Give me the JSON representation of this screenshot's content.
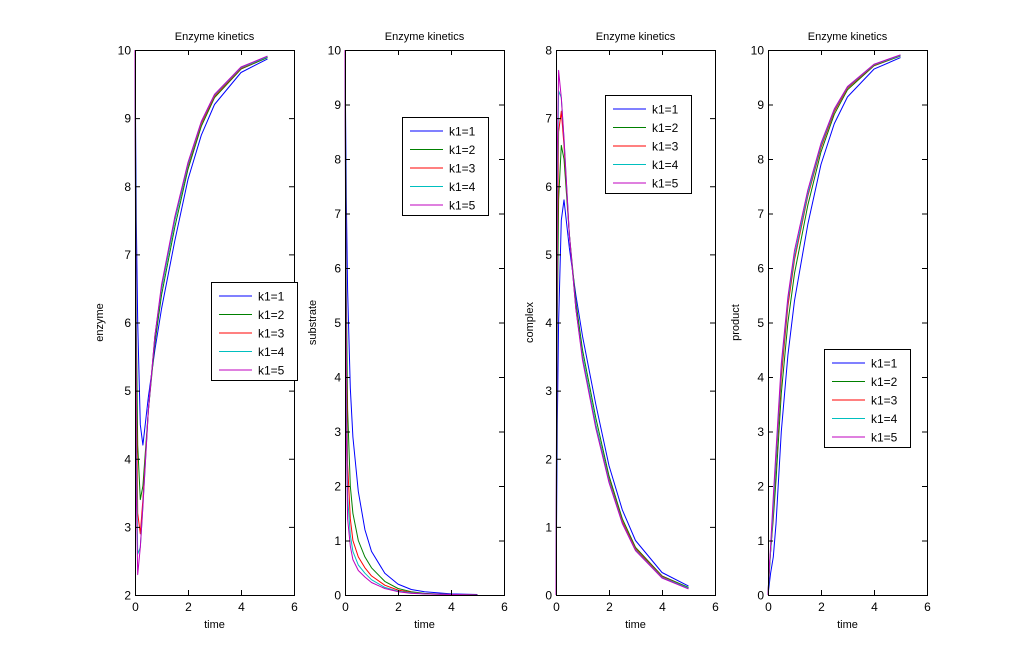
{
  "chart_data": [
    {
      "type": "line",
      "title": "Enzyme kinetics",
      "xlabel": "time",
      "ylabel": "enzyme",
      "xlim": [
        0,
        6
      ],
      "ylim": [
        2,
        10
      ],
      "xticks": [
        0,
        2,
        4,
        6
      ],
      "yticks": [
        2,
        3,
        4,
        5,
        6,
        7,
        8,
        9,
        10
      ],
      "legend_position": "middle-right",
      "x": [
        0,
        0.05,
        0.1,
        0.2,
        0.3,
        0.5,
        0.75,
        1,
        1.5,
        2,
        2.5,
        3,
        4,
        5
      ],
      "series": [
        {
          "name": "k1=1",
          "color": "#0000ff",
          "values": [
            10,
            7.5,
            6.0,
            4.5,
            4.2,
            4.9,
            5.6,
            6.2,
            7.2,
            8.1,
            8.75,
            9.2,
            9.67,
            9.87
          ]
        },
        {
          "name": "k1=2",
          "color": "#008000",
          "values": [
            10,
            6.0,
            4.2,
            3.4,
            3.6,
            4.7,
            5.7,
            6.4,
            7.4,
            8.25,
            8.88,
            9.3,
            9.72,
            9.89
          ]
        },
        {
          "name": "k1=3",
          "color": "#ff0000",
          "values": [
            10,
            5.0,
            3.2,
            2.9,
            3.4,
            4.7,
            5.8,
            6.5,
            7.5,
            8.3,
            8.92,
            9.32,
            9.73,
            9.9
          ]
        },
        {
          "name": "k1=4",
          "color": "#00bfbf",
          "values": [
            10,
            4.2,
            2.6,
            2.7,
            3.3,
            4.7,
            5.8,
            6.5,
            7.5,
            8.32,
            8.94,
            9.34,
            9.74,
            9.9
          ]
        },
        {
          "name": "k1=5",
          "color": "#bf00bf",
          "values": [
            10,
            3.5,
            2.3,
            2.7,
            3.3,
            4.7,
            5.8,
            6.55,
            7.55,
            8.35,
            8.95,
            9.35,
            9.75,
            9.91
          ]
        }
      ]
    },
    {
      "type": "line",
      "title": "Enzyme kinetics",
      "xlabel": "time",
      "ylabel": "substrate",
      "xlim": [
        0,
        6
      ],
      "ylim": [
        0,
        10
      ],
      "xticks": [
        0,
        2,
        4,
        6
      ],
      "yticks": [
        0,
        1,
        2,
        3,
        4,
        5,
        6,
        7,
        8,
        9,
        10
      ],
      "legend_position": "top-right",
      "x": [
        0,
        0.05,
        0.1,
        0.2,
        0.3,
        0.5,
        0.75,
        1,
        1.5,
        2,
        2.5,
        3,
        4,
        5
      ],
      "series": [
        {
          "name": "k1=1",
          "color": "#0000ff",
          "values": [
            10,
            7.3,
            5.6,
            3.8,
            2.9,
            1.9,
            1.2,
            0.8,
            0.4,
            0.2,
            0.1,
            0.06,
            0.02,
            0.01
          ]
        },
        {
          "name": "k1=2",
          "color": "#008000",
          "values": [
            10,
            5.6,
            3.4,
            2.0,
            1.5,
            1.0,
            0.7,
            0.5,
            0.25,
            0.12,
            0.06,
            0.03,
            0.01,
            0.005
          ]
        },
        {
          "name": "k1=3",
          "color": "#ff0000",
          "values": [
            10,
            4.5,
            2.4,
            1.4,
            1.0,
            0.7,
            0.5,
            0.35,
            0.18,
            0.09,
            0.05,
            0.02,
            0.01,
            0
          ]
        },
        {
          "name": "k1=4",
          "color": "#00bfbf",
          "values": [
            10,
            3.7,
            1.8,
            1.1,
            0.8,
            0.55,
            0.4,
            0.28,
            0.14,
            0.07,
            0.04,
            0.02,
            0.01,
            0
          ]
        },
        {
          "name": "k1=5",
          "color": "#bf00bf",
          "values": [
            10,
            3.0,
            1.4,
            0.9,
            0.65,
            0.45,
            0.33,
            0.23,
            0.12,
            0.06,
            0.03,
            0.02,
            0.01,
            0
          ]
        }
      ]
    },
    {
      "type": "line",
      "title": "Enzyme kinetics",
      "xlabel": "time",
      "ylabel": "complex",
      "xlim": [
        0,
        6
      ],
      "ylim": [
        0,
        8
      ],
      "xticks": [
        0,
        2,
        4,
        6
      ],
      "yticks": [
        0,
        1,
        2,
        3,
        4,
        5,
        6,
        7,
        8
      ],
      "legend_position": "top-right",
      "x": [
        0,
        0.05,
        0.1,
        0.2,
        0.3,
        0.5,
        0.75,
        1,
        1.5,
        2,
        2.5,
        3,
        4,
        5
      ],
      "series": [
        {
          "name": "k1=1",
          "color": "#0000ff",
          "values": [
            0,
            2.5,
            4.0,
            5.5,
            5.8,
            5.1,
            4.4,
            3.8,
            2.8,
            1.9,
            1.25,
            0.8,
            0.33,
            0.13
          ]
        },
        {
          "name": "k1=2",
          "color": "#008000",
          "values": [
            0,
            4.0,
            5.8,
            6.6,
            6.4,
            5.3,
            4.3,
            3.6,
            2.6,
            1.75,
            1.12,
            0.7,
            0.28,
            0.11
          ]
        },
        {
          "name": "k1=3",
          "color": "#ff0000",
          "values": [
            0,
            5.0,
            6.8,
            7.1,
            6.6,
            5.3,
            4.2,
            3.5,
            2.5,
            1.7,
            1.08,
            0.68,
            0.27,
            0.1
          ]
        },
        {
          "name": "k1=4",
          "color": "#00bfbf",
          "values": [
            0,
            5.8,
            7.4,
            7.3,
            6.7,
            5.3,
            4.2,
            3.5,
            2.5,
            1.68,
            1.06,
            0.66,
            0.26,
            0.1
          ]
        },
        {
          "name": "k1=5",
          "color": "#bf00bf",
          "values": [
            0,
            6.5,
            7.7,
            7.3,
            6.7,
            5.3,
            4.2,
            3.45,
            2.45,
            1.65,
            1.05,
            0.65,
            0.25,
            0.09
          ]
        }
      ]
    },
    {
      "type": "line",
      "title": "Enzyme kinetics",
      "xlabel": "time",
      "ylabel": "product",
      "xlim": [
        0,
        6
      ],
      "ylim": [
        0,
        10
      ],
      "xticks": [
        0,
        2,
        4,
        6
      ],
      "yticks": [
        0,
        1,
        2,
        3,
        4,
        5,
        6,
        7,
        8,
        9,
        10
      ],
      "legend_position": "bottom-right",
      "x": [
        0,
        0.05,
        0.1,
        0.2,
        0.3,
        0.5,
        0.75,
        1,
        1.5,
        2,
        2.5,
        3,
        4,
        5
      ],
      "series": [
        {
          "name": "k1=1",
          "color": "#0000ff",
          "values": [
            0,
            0.2,
            0.4,
            0.7,
            1.3,
            3.0,
            4.4,
            5.4,
            6.8,
            7.9,
            8.65,
            9.14,
            9.65,
            9.86
          ]
        },
        {
          "name": "k1=2",
          "color": "#008000",
          "values": [
            0,
            0.4,
            0.8,
            1.4,
            2.1,
            3.7,
            5.0,
            5.9,
            7.15,
            8.13,
            8.82,
            9.27,
            9.71,
            9.89
          ]
        },
        {
          "name": "k1=3",
          "color": "#ff0000",
          "values": [
            0,
            0.5,
            0.8,
            1.5,
            2.4,
            4.0,
            5.3,
            6.15,
            7.32,
            8.21,
            8.87,
            9.3,
            9.72,
            9.9
          ]
        },
        {
          "name": "k1=4",
          "color": "#00bfbf",
          "values": [
            0,
            0.5,
            0.8,
            1.6,
            2.5,
            4.15,
            5.4,
            6.22,
            7.36,
            8.25,
            8.9,
            9.32,
            9.73,
            9.9
          ]
        },
        {
          "name": "k1=5",
          "color": "#bf00bf",
          "values": [
            0,
            0.5,
            0.9,
            1.8,
            2.65,
            4.25,
            5.47,
            6.32,
            7.43,
            8.29,
            8.92,
            9.33,
            9.74,
            9.91
          ]
        }
      ]
    }
  ]
}
